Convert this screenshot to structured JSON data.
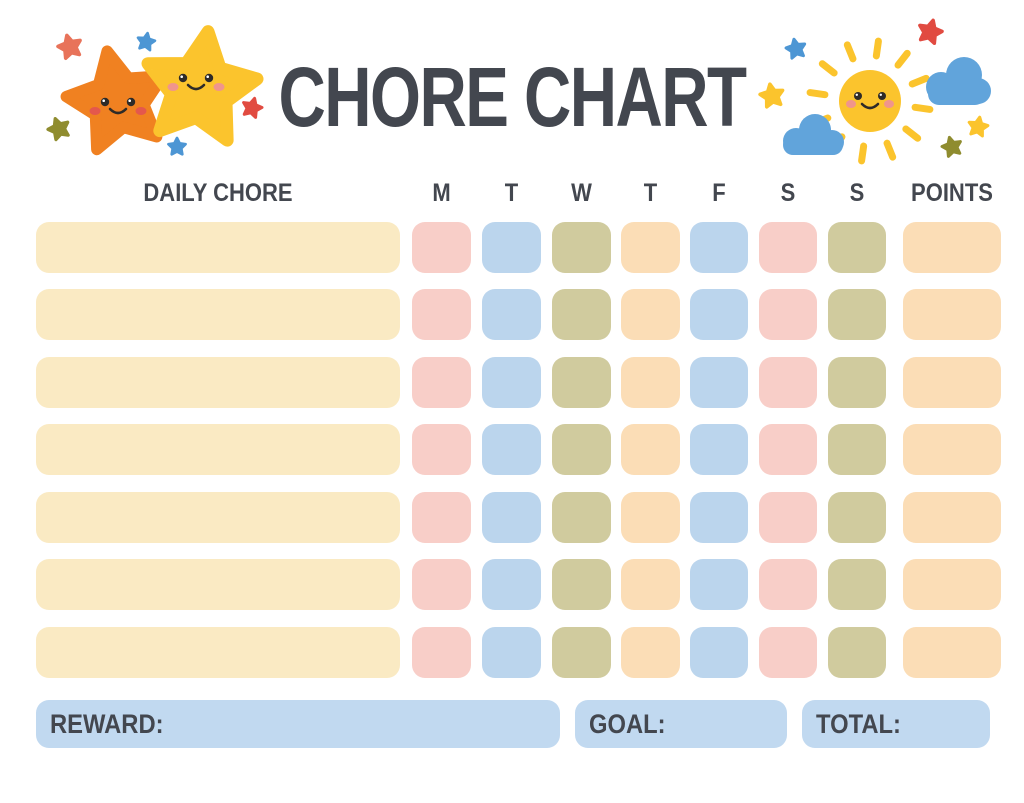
{
  "title": "CHORE CHART",
  "table": {
    "chore_column_header": "DAILY CHORE",
    "day_headers": [
      "M",
      "T",
      "W",
      "T",
      "F",
      "S",
      "S"
    ],
    "points_header": "POINTS",
    "row_count": 7,
    "chore_values": [
      "",
      "",
      "",
      "",
      "",
      "",
      ""
    ],
    "colors": {
      "chore_cell": "#FAEAC3",
      "day_cells": [
        "#F8CEC8",
        "#BBD5ED",
        "#D0CB9E",
        "#FBDDB6",
        "#BBD5ED",
        "#F8CEC8",
        "#D0CB9E"
      ],
      "points_cell": "#FBDDB6"
    }
  },
  "footer": {
    "reward_label": "REWARD:",
    "goal_label": "GOAL:",
    "total_label": "TOTAL:",
    "reward_value": "",
    "goal_value": "",
    "total_value": "",
    "box_color": "#C1D9F0"
  },
  "theme": {
    "text": "#43474F",
    "background": "#FFFFFF",
    "star_orange": "#F08121",
    "star_yellow": "#FBC42D",
    "star_coral": "#E8735A",
    "star_red": "#E14B41",
    "star_blue": "#4D96D4",
    "star_olive": "#8F8C2F",
    "sun_yellow": "#FBC42D",
    "cloud_blue": "#61A4DB",
    "face_dark": "#2E2B28",
    "cheek_pink": "#F0958C",
    "cheek_red": "#E4584C",
    "footer_box": "#C1D9F0"
  },
  "icons": {
    "left_decoration": "two smiling stars with small scattered stars",
    "right_decoration": "smiling sun with clouds and small scattered stars"
  }
}
